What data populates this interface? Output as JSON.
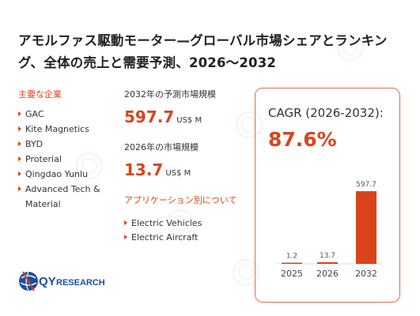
{
  "title": "アモルファス駆動モーター—グローバル市場シェアとランキング、全体の売上と需要予測、2026～2032",
  "companies": {
    "label": "主要な企業",
    "items": [
      "GAC",
      "Kite Magnetics",
      "BYD",
      "Proterial",
      "Qingdao Yunlu",
      "Advanced Tech & Material"
    ]
  },
  "forecast_2032": {
    "label": "2032年の予測市場規模",
    "value": "597.7",
    "unit": "US$ M"
  },
  "market_2026": {
    "label": "2026年の市場規模",
    "value": "13.7",
    "unit": "US$ M"
  },
  "applications": {
    "label": "アプリケーション別について",
    "items": [
      "Electric Vehicles",
      "Electric Aircraft"
    ]
  },
  "cagr": {
    "label": "CAGR (2026-2032):",
    "value": "87.6%"
  },
  "chart_data": {
    "type": "bar",
    "categories": [
      "2025",
      "2026",
      "2032"
    ],
    "values": [
      1.2,
      13.7,
      597.7
    ],
    "value_labels": [
      "1.2",
      "13.7",
      "597.7"
    ],
    "bar_color": "#d9441c",
    "ylim": [
      0,
      597.7
    ],
    "grid": false
  },
  "logo": {
    "text_prefix": "QY",
    "text_suffix": "RESEARCH"
  },
  "colors": {
    "accent": "#d9441c",
    "card_border": "#e36b4a",
    "logo_blue": "#1b4f9c"
  }
}
